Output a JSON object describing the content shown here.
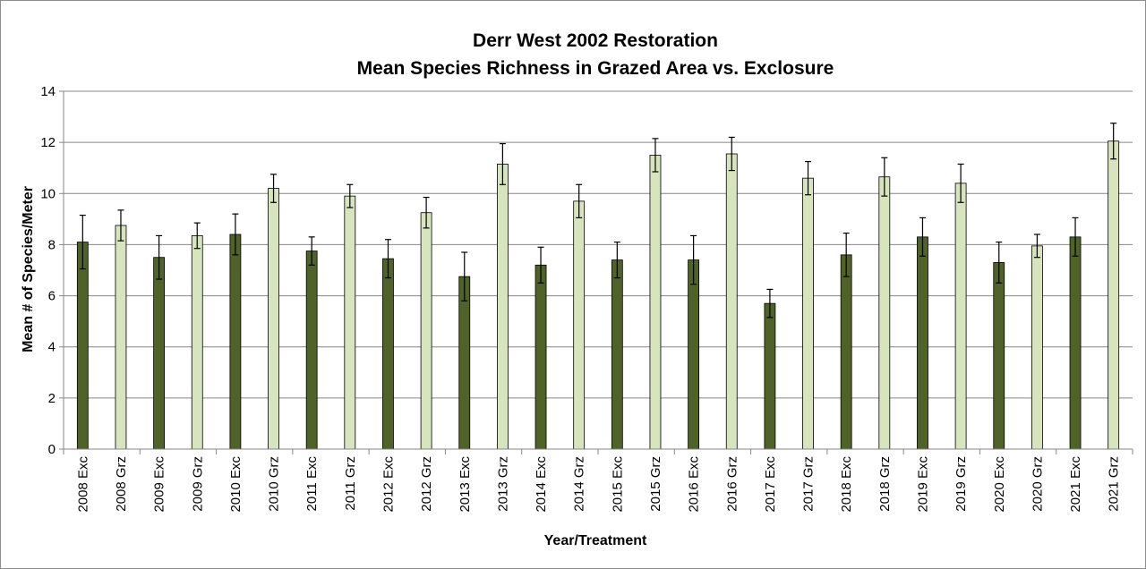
{
  "chart_data": {
    "type": "bar",
    "title": "Derr West 2002 Restoration",
    "subtitle": "Mean Species Richness in Grazed Area vs. Exclosure",
    "xlabel": "Year/Treatment",
    "ylabel": "Mean # of Species/Meter",
    "ylim": [
      0,
      14
    ],
    "ytick_step": 2,
    "grid": true,
    "colors": {
      "Exc": "#4f6228",
      "Grz": "#d7e4bd",
      "outline": "#000000",
      "grid": "#868686"
    },
    "groups": [
      {
        "year": "2008",
        "bars": [
          {
            "label": "2008 Exc",
            "treatment": "Exc",
            "value": 8.1,
            "err": 1.05
          },
          {
            "label": "2008 Grz",
            "treatment": "Grz",
            "value": 8.75,
            "err": 0.6
          }
        ]
      },
      {
        "year": "2009",
        "bars": [
          {
            "label": "2009 Exc",
            "treatment": "Exc",
            "value": 7.5,
            "err": 0.85
          },
          {
            "label": "2009 Grz",
            "treatment": "Grz",
            "value": 8.35,
            "err": 0.5
          }
        ]
      },
      {
        "year": "2010",
        "bars": [
          {
            "label": "2010 Exc",
            "treatment": "Exc",
            "value": 8.4,
            "err": 0.8
          },
          {
            "label": "2010 Grz",
            "treatment": "Grz",
            "value": 10.2,
            "err": 0.55
          }
        ]
      },
      {
        "year": "2011",
        "bars": [
          {
            "label": "2011 Exc",
            "treatment": "Exc",
            "value": 7.75,
            "err": 0.55
          },
          {
            "label": "2011 Grz",
            "treatment": "Grz",
            "value": 9.9,
            "err": 0.45
          }
        ]
      },
      {
        "year": "2012",
        "bars": [
          {
            "label": "2012 Exc",
            "treatment": "Exc",
            "value": 7.45,
            "err": 0.75
          },
          {
            "label": "2012 Grz",
            "treatment": "Grz",
            "value": 9.25,
            "err": 0.6
          }
        ]
      },
      {
        "year": "2013",
        "bars": [
          {
            "label": "2013 Exc",
            "treatment": "Exc",
            "value": 6.75,
            "err": 0.95
          },
          {
            "label": "2013 Grz",
            "treatment": "Grz",
            "value": 11.15,
            "err": 0.8
          }
        ]
      },
      {
        "year": "2014",
        "bars": [
          {
            "label": "2014 Exc",
            "treatment": "Exc",
            "value": 7.2,
            "err": 0.7
          },
          {
            "label": "2014 Grz",
            "treatment": "Grz",
            "value": 9.7,
            "err": 0.65
          }
        ]
      },
      {
        "year": "2015",
        "bars": [
          {
            "label": "2015 Exc",
            "treatment": "Exc",
            "value": 7.4,
            "err": 0.7
          },
          {
            "label": "2015 Grz",
            "treatment": "Grz",
            "value": 11.5,
            "err": 0.65
          }
        ]
      },
      {
        "year": "2016",
        "bars": [
          {
            "label": "2016 Exc",
            "treatment": "Exc",
            "value": 7.4,
            "err": 0.95
          },
          {
            "label": "2016 Grz",
            "treatment": "Grz",
            "value": 11.55,
            "err": 0.65
          }
        ]
      },
      {
        "year": "2017",
        "bars": [
          {
            "label": "2017 Exc",
            "treatment": "Exc",
            "value": 5.7,
            "err": 0.55
          },
          {
            "label": "2017 Grz",
            "treatment": "Grz",
            "value": 10.6,
            "err": 0.65
          }
        ]
      },
      {
        "year": "2018",
        "bars": [
          {
            "label": "2018 Exc",
            "treatment": "Exc",
            "value": 7.6,
            "err": 0.85
          },
          {
            "label": "2018 Grz",
            "treatment": "Grz",
            "value": 10.65,
            "err": 0.75
          }
        ]
      },
      {
        "year": "2019",
        "bars": [
          {
            "label": "2019 Exc",
            "treatment": "Exc",
            "value": 8.3,
            "err": 0.75
          },
          {
            "label": "2019 Grz",
            "treatment": "Grz",
            "value": 10.4,
            "err": 0.75
          }
        ]
      },
      {
        "year": "2020",
        "bars": [
          {
            "label": "2020 Exc",
            "treatment": "Exc",
            "value": 7.3,
            "err": 0.8
          },
          {
            "label": "2020 Grz",
            "treatment": "Grz",
            "value": 7.95,
            "err": 0.45
          }
        ]
      },
      {
        "year": "2021",
        "bars": [
          {
            "label": "2021 Exc",
            "treatment": "Exc",
            "value": 8.3,
            "err": 0.75
          },
          {
            "label": "2021 Grz",
            "treatment": "Grz",
            "value": 12.05,
            "err": 0.7
          }
        ]
      }
    ]
  }
}
